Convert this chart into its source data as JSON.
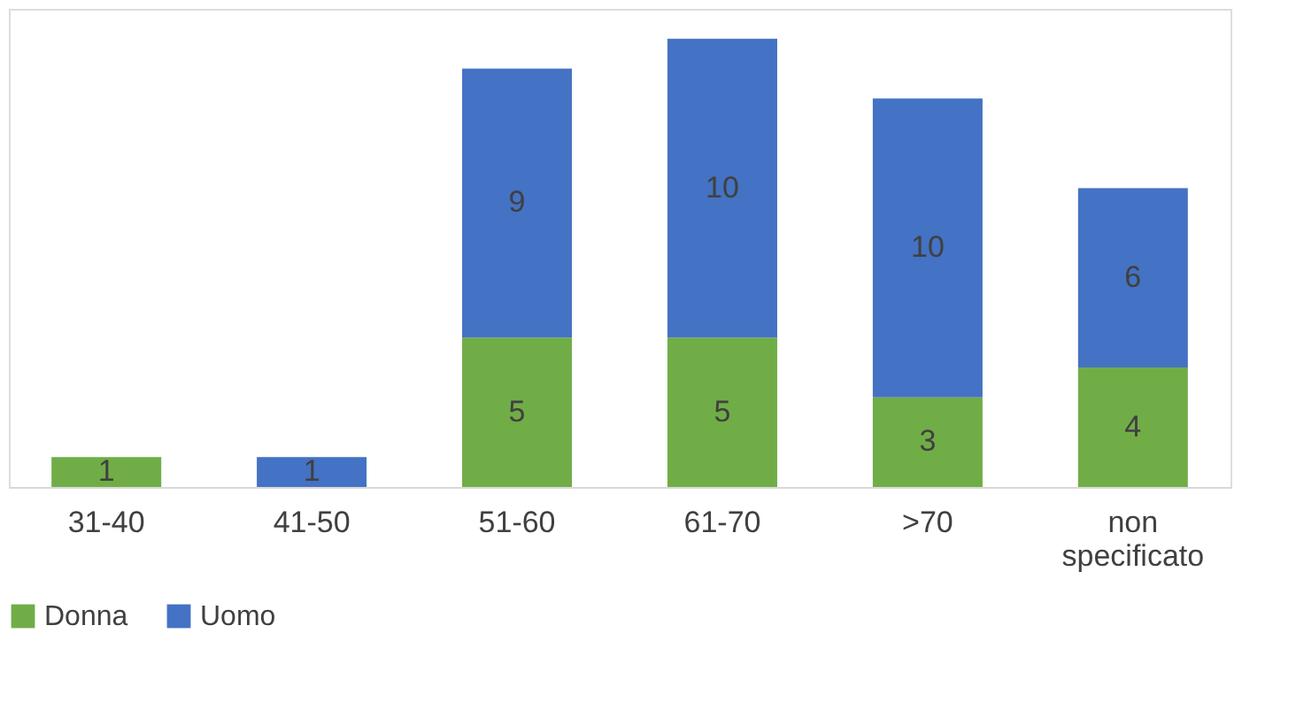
{
  "chart_data": {
    "type": "bar",
    "stacked": true,
    "data_labels": true,
    "legend": "bottom",
    "grid": false,
    "categories": [
      "31-40",
      "41-50",
      "51-60",
      "61-70",
      ">70",
      "non specificato"
    ],
    "series": [
      {
        "name": "Donna",
        "color": "#70ad47",
        "values": [
          1,
          null,
          5,
          5,
          3,
          4
        ]
      },
      {
        "name": "Uomo",
        "color": "#4472c4",
        "values": [
          null,
          1,
          9,
          10,
          10,
          6
        ]
      }
    ]
  }
}
